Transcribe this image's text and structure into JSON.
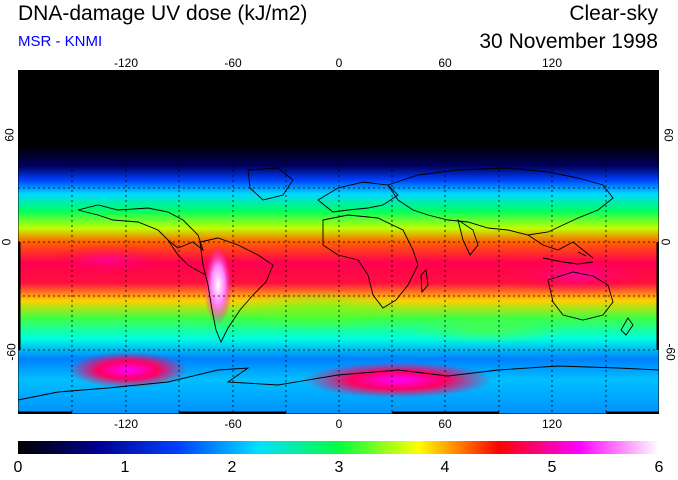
{
  "header": {
    "title": "DNA-damage UV dose (kJ/m2)",
    "subtitle": "MSR - KNMI",
    "sky_type": "Clear-sky",
    "date": "30 November 1998"
  },
  "map": {
    "projection": "equirectangular",
    "lon_ticks": [
      "-120",
      "-60",
      "0",
      "60",
      "120"
    ],
    "lat_ticks": [
      "60",
      "0",
      "-60"
    ],
    "gridlines": "dotted",
    "variable": "DNA-damage UV dose",
    "units": "kJ/m2"
  },
  "colorbar": {
    "min": 0,
    "max": 6,
    "labels": [
      "0",
      "1",
      "2",
      "3",
      "4",
      "5",
      "6"
    ],
    "colors": [
      "#000000",
      "#000090",
      "#0040ff",
      "#00e0ff",
      "#00ff40",
      "#ffff00",
      "#ff0000",
      "#ff00ff",
      "#ffffff"
    ]
  }
}
